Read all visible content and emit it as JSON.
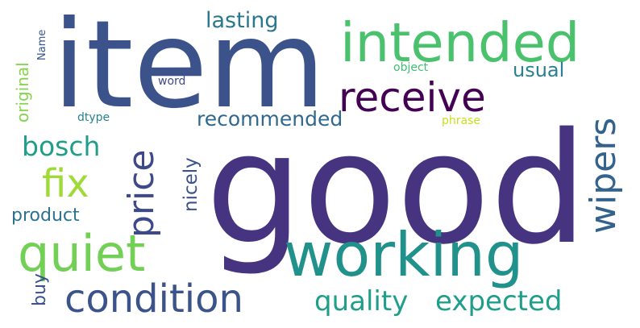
{
  "wordcloud": {
    "background": "#ffffff",
    "words": [
      {
        "text": "good",
        "color": "#463480"
      },
      {
        "text": "item",
        "color": "#3b528b"
      },
      {
        "text": "intended",
        "color": "#4ac16d"
      },
      {
        "text": "working",
        "color": "#21918c"
      },
      {
        "text": "receive",
        "color": "#440154"
      },
      {
        "text": "quiet",
        "color": "#73d056"
      },
      {
        "text": "condition",
        "color": "#3b528b"
      },
      {
        "text": "price",
        "color": "#3e4989"
      },
      {
        "text": "wipers",
        "color": "#33638d"
      },
      {
        "text": "fix",
        "color": "#a0da39"
      },
      {
        "text": "bosch",
        "color": "#1f9e89"
      },
      {
        "text": "quality",
        "color": "#1f9e89"
      },
      {
        "text": "expected",
        "color": "#1f9e89"
      },
      {
        "text": "lasting",
        "color": "#2a788e"
      },
      {
        "text": "recommended",
        "color": "#31688e"
      },
      {
        "text": "usual",
        "color": "#26828e"
      },
      {
        "text": "nicely",
        "color": "#3b528b"
      },
      {
        "text": "product",
        "color": "#2c728e"
      },
      {
        "text": "buy",
        "color": "#3b528b"
      },
      {
        "text": "original",
        "color": "#84d44b"
      },
      {
        "text": "word",
        "color": "#3e4a89"
      },
      {
        "text": "object",
        "color": "#3fbc73"
      },
      {
        "text": "dtype",
        "color": "#26828e"
      },
      {
        "text": "Name",
        "color": "#38588c"
      },
      {
        "text": "phrase",
        "color": "#c8e020"
      }
    ]
  }
}
